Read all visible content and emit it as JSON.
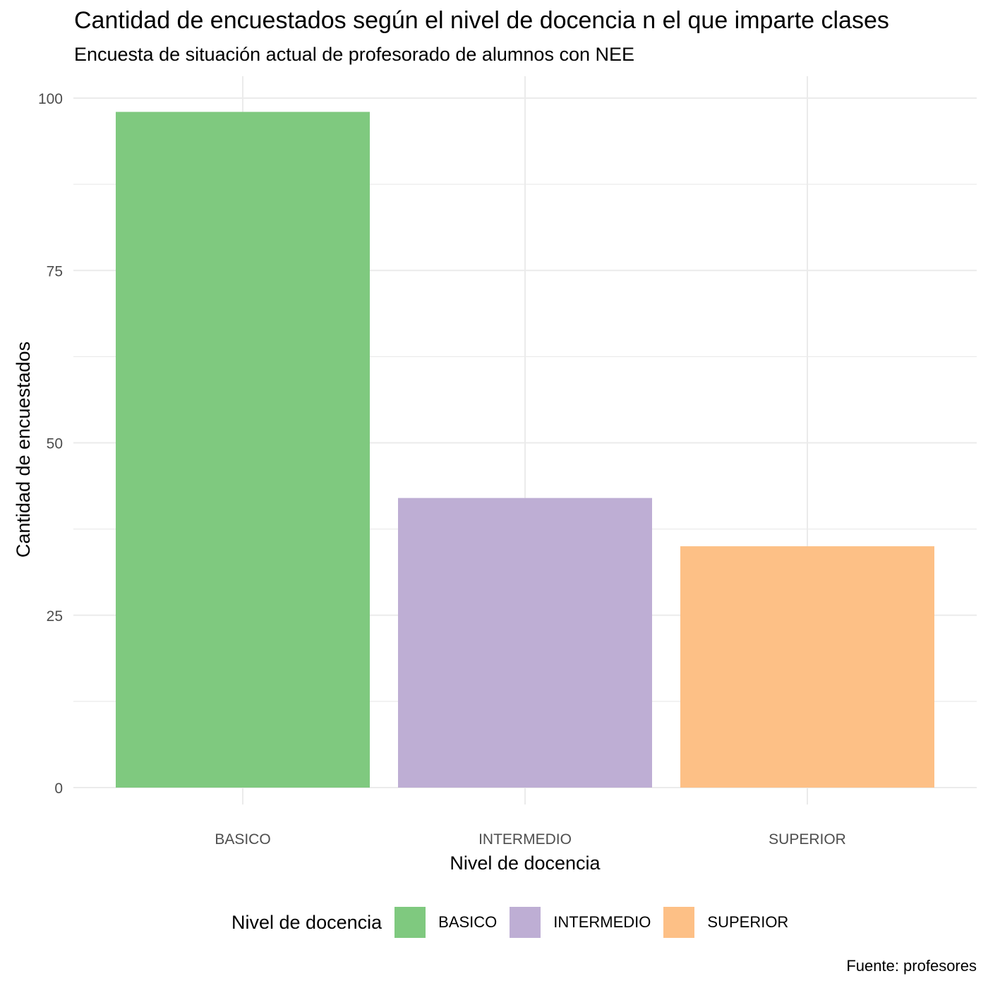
{
  "chart_data": {
    "type": "bar",
    "title": "Cantidad de encuestados según el nivel de docencia n el que imparte clases",
    "subtitle": "Encuesta de situación actual de profesorado de alumnos con NEE",
    "caption": "Fuente: profesores",
    "xlabel": "Nivel de docencia",
    "ylabel": "Cantidad de encuestados",
    "categories": [
      "BASICO",
      "INTERMEDIO",
      "SUPERIOR"
    ],
    "values": [
      98,
      42,
      35
    ],
    "colors": [
      "#7FC97F",
      "#BEAED4",
      "#FDC086"
    ],
    "ylim": [
      0,
      100
    ],
    "yticks": [
      0,
      25,
      50,
      75,
      100
    ],
    "grid": true,
    "legend": {
      "title": "Nivel de docencia",
      "position": "bottom",
      "items": [
        "BASICO",
        "INTERMEDIO",
        "SUPERIOR"
      ]
    }
  }
}
